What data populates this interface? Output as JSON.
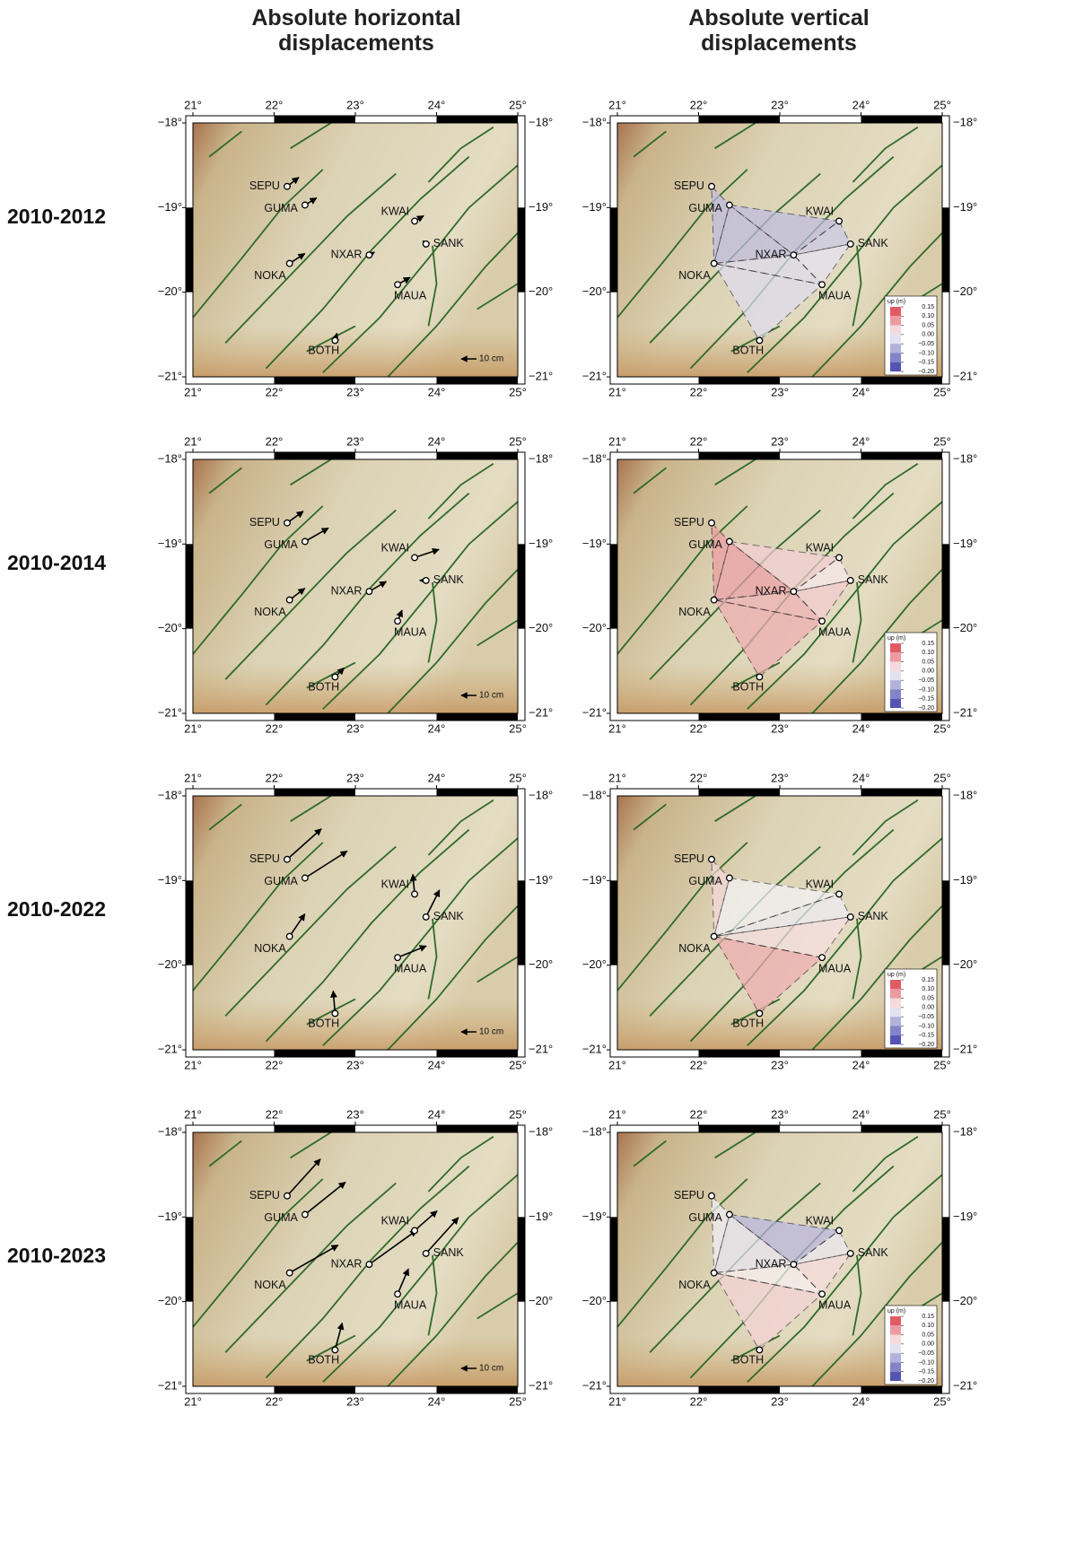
{
  "headers": [
    "Absolute horizontal displacements",
    "Absolute vertical displacements"
  ],
  "map": {
    "xlim": [
      21,
      25
    ],
    "ylim": [
      -21,
      -18
    ],
    "xticks": [
      {
        "value": 21,
        "label": "21°"
      },
      {
        "value": 22,
        "label": "22°"
      },
      {
        "value": 23,
        "label": "23°"
      },
      {
        "value": 24,
        "label": "24°"
      },
      {
        "value": 25,
        "label": "25°"
      }
    ],
    "yticks": [
      {
        "value": -18,
        "label": "−18°"
      },
      {
        "value": -19,
        "label": "−19°"
      },
      {
        "value": -20,
        "label": "−20°"
      },
      {
        "value": -21,
        "label": "−21°"
      }
    ]
  },
  "stations": [
    {
      "name": "SEPU",
      "lon": 22.16,
      "lat": -18.75
    },
    {
      "name": "GUMA",
      "lon": 22.38,
      "lat": -18.97
    },
    {
      "name": "NOKA",
      "lon": 22.19,
      "lat": -19.66
    },
    {
      "name": "NXAR",
      "lon": 23.17,
      "lat": -19.56
    },
    {
      "name": "KWAI",
      "lon": 23.73,
      "lat": -19.16
    },
    {
      "name": "SANK",
      "lon": 23.87,
      "lat": -19.43
    },
    {
      "name": "MAUA",
      "lon": 23.52,
      "lat": -19.91
    },
    {
      "name": "BOTH",
      "lon": 22.75,
      "lat": -20.57
    }
  ],
  "scale": {
    "label": "10 cm",
    "length": 10
  },
  "legend": {
    "title": "up (m)",
    "ticks": [
      {
        "value": 0.15,
        "label": "0.15"
      },
      {
        "value": 0.1,
        "label": "0.10"
      },
      {
        "value": 0.05,
        "label": "0.05"
      },
      {
        "value": 0,
        "label": "0.00"
      },
      {
        "value": -0.05,
        "label": "−0.05"
      },
      {
        "value": -0.1,
        "label": "−0.10"
      },
      {
        "value": -0.15,
        "label": "−0.15"
      },
      {
        "value": -0.2,
        "label": "−0.20"
      }
    ]
  },
  "rows": [
    {
      "label": "2010-2012",
      "horizontal": [
        [
          7.6,
          5.9
        ],
        [
          7.6,
          4.7
        ],
        [
          10,
          6.5
        ],
        [
          3.5,
          1.8
        ],
        [
          5.9,
          3.5
        ],
        [
          -2,
          2
        ],
        [
          8.2,
          4.7
        ],
        [
          1.2,
          4.7
        ]
      ],
      "vertical": [
        -0.05,
        -0.08,
        -0.06,
        -0.05,
        -0.06,
        -0.04,
        0.02,
        -0.05
      ]
    },
    {
      "label": "2010-2014",
      "horizontal": [
        [
          10.6,
          7.6
        ],
        [
          15.3,
          8.8
        ],
        [
          10,
          7.6
        ],
        [
          11.2,
          6.5
        ],
        [
          15.9,
          5.3
        ],
        [
          -4.1,
          0
        ],
        [
          2.9,
          7.1
        ],
        [
          5.9,
          5.9
        ]
      ],
      "vertical": [
        0.06,
        0.08,
        0.08,
        0.05,
        -0.03,
        0.02,
        0.04,
        0.06
      ]
    },
    {
      "label": "2010-2022",
      "horizontal": [
        [
          22.4,
          20
        ],
        [
          27.6,
          17.6
        ],
        [
          10,
          14.7
        ],
        null,
        [
          -1.2,
          12.9
        ],
        [
          8.8,
          17.6
        ],
        [
          18.8,
          7.6
        ],
        [
          -1.2,
          14.7
        ]
      ],
      "vertical": [
        0.02,
        -0.04,
        0.1,
        null,
        -0.08,
        -0.06,
        0.02,
        0.06
      ]
    },
    {
      "label": "2010-2023",
      "horizontal": [
        [
          21.8,
          24.1
        ],
        [
          26.5,
          21.2
        ],
        [
          31.8,
          18.2
        ],
        [
          31.2,
          22.4
        ],
        [
          14.7,
          12.9
        ],
        [
          21.2,
          23.5
        ],
        [
          7.1,
          16.5
        ],
        [
          4.7,
          17.6
        ]
      ],
      "vertical": [
        -0.02,
        -0.06,
        0.05,
        -0.05,
        -0.1,
        0.1,
        0.02,
        0.02
      ]
    }
  ]
}
